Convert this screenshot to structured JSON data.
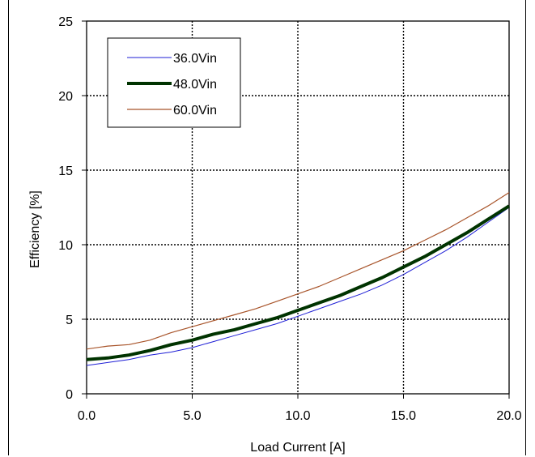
{
  "chart_data": {
    "type": "line",
    "title": "",
    "xlabel": "Load Current [A]",
    "ylabel": "Efficiency [%]",
    "xlim": [
      0,
      20
    ],
    "ylim": [
      0,
      25
    ],
    "xticks": [
      0,
      5,
      10,
      15,
      20
    ],
    "xtick_labels": [
      "0.0",
      "5.0",
      "10.0",
      "15.0",
      "20.0"
    ],
    "yticks": [
      0,
      5,
      10,
      15,
      20,
      25
    ],
    "ytick_labels": [
      "0",
      "5",
      "10",
      "15",
      "20",
      "25"
    ],
    "grid": true,
    "legend": "top-left",
    "series": [
      {
        "name": "36.0Vin",
        "color": "#1f1fd6",
        "x": [
          0,
          1,
          2,
          3,
          4,
          5,
          6,
          7,
          8,
          9,
          10,
          11,
          12,
          13,
          14,
          15,
          16,
          17,
          18,
          19,
          20
        ],
        "values": [
          1.9,
          2.1,
          2.3,
          2.6,
          2.8,
          3.1,
          3.5,
          3.9,
          4.3,
          4.7,
          5.2,
          5.7,
          6.2,
          6.7,
          7.3,
          8.0,
          8.8,
          9.6,
          10.5,
          11.5,
          12.5
        ]
      },
      {
        "name": "48.0Vin",
        "color": "#003300",
        "x": [
          0,
          1,
          2,
          3,
          4,
          5,
          6,
          7,
          8,
          9,
          10,
          11,
          12,
          13,
          14,
          15,
          16,
          17,
          18,
          19,
          20
        ],
        "values": [
          2.3,
          2.4,
          2.6,
          2.9,
          3.3,
          3.6,
          4.0,
          4.3,
          4.7,
          5.1,
          5.6,
          6.1,
          6.6,
          7.2,
          7.8,
          8.5,
          9.2,
          10.0,
          10.8,
          11.7,
          12.6
        ]
      },
      {
        "name": "60.0Vin",
        "color": "#a8542a",
        "x": [
          0,
          1,
          2,
          3,
          4,
          5,
          6,
          7,
          8,
          9,
          10,
          11,
          12,
          13,
          14,
          15,
          16,
          17,
          18,
          19,
          20
        ],
        "values": [
          3.0,
          3.2,
          3.3,
          3.6,
          4.1,
          4.5,
          4.9,
          5.3,
          5.7,
          6.2,
          6.7,
          7.2,
          7.8,
          8.4,
          9.0,
          9.6,
          10.3,
          11.0,
          11.8,
          12.6,
          13.5
        ]
      }
    ]
  }
}
